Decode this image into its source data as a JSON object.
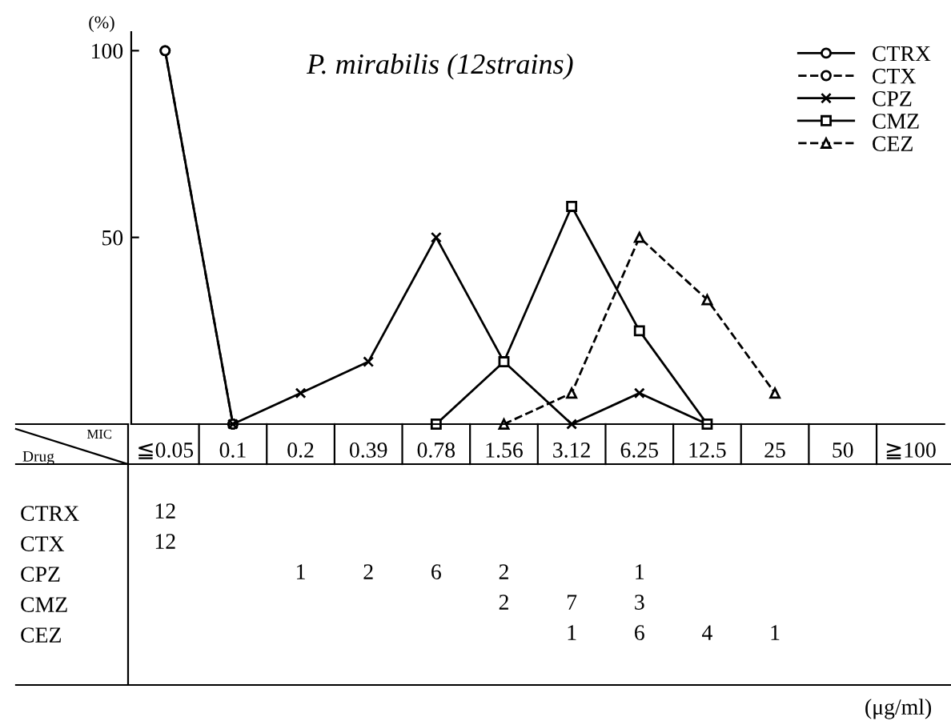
{
  "chart_data": [
    {
      "type": "line",
      "title": "P. mirabilis (12strains)",
      "ylabel": "(%)",
      "categories": [
        "≦0.05",
        "0.1",
        "0.2",
        "0.39",
        "0.78",
        "1.56",
        "3.12",
        "6.25",
        "12.5",
        "25",
        "50",
        "≧100"
      ],
      "series": [
        {
          "name": "CTRX",
          "color": "#000000",
          "marker": "circle",
          "line_style": "solid",
          "values": [
            100,
            0,
            null,
            null,
            null,
            null,
            null,
            null,
            null,
            null,
            null,
            null
          ]
        },
        {
          "name": "CTX",
          "color": "#000000",
          "marker": "circle",
          "line_style": "dashed",
          "values": [
            100,
            0,
            null,
            null,
            null,
            null,
            null,
            null,
            null,
            null,
            null,
            null
          ]
        },
        {
          "name": "CPZ",
          "color": "#000000",
          "marker": "cross",
          "line_style": "solid",
          "values": [
            null,
            0,
            8.3,
            16.7,
            50,
            16.7,
            0,
            8.3,
            0,
            null,
            null,
            null
          ]
        },
        {
          "name": "CMZ",
          "color": "#000000",
          "marker": "square",
          "line_style": "solid",
          "values": [
            null,
            null,
            null,
            null,
            0,
            16.7,
            58.3,
            25,
            0,
            null,
            null,
            null
          ]
        },
        {
          "name": "CEZ",
          "color": "#000000",
          "marker": "triangle",
          "line_style": "dashed",
          "values": [
            null,
            null,
            null,
            null,
            null,
            0,
            8.3,
            50,
            33.3,
            8.3,
            null,
            null
          ]
        }
      ],
      "ylim": [
        0,
        105
      ],
      "yticks": [
        50,
        100
      ],
      "legend": "top right",
      "annotations": [
        "MIC",
        "Drug",
        "(μg/ml)"
      ]
    },
    {
      "type": "heatmap",
      "data_labels": true,
      "tick_labels": "y",
      "categories": [
        null,
        null,
        null,
        null,
        null,
        null,
        null,
        null,
        null,
        null,
        null,
        null
      ],
      "y_categories": [
        "CTRX",
        "CTX",
        "CPZ",
        "CMZ",
        "CEZ"
      ],
      "cells": [
        [
          12,
          null,
          null,
          null,
          null,
          null,
          null,
          null,
          null,
          null,
          null,
          null
        ],
        [
          12,
          null,
          null,
          null,
          null,
          null,
          null,
          null,
          null,
          null,
          null,
          null
        ],
        [
          null,
          null,
          1,
          2,
          6,
          2,
          null,
          1,
          null,
          null,
          null,
          null
        ],
        [
          null,
          null,
          null,
          null,
          null,
          2,
          7,
          3,
          null,
          null,
          null,
          null
        ],
        [
          null,
          null,
          null,
          null,
          null,
          null,
          1,
          6,
          4,
          1,
          null,
          null
        ]
      ]
    }
  ]
}
